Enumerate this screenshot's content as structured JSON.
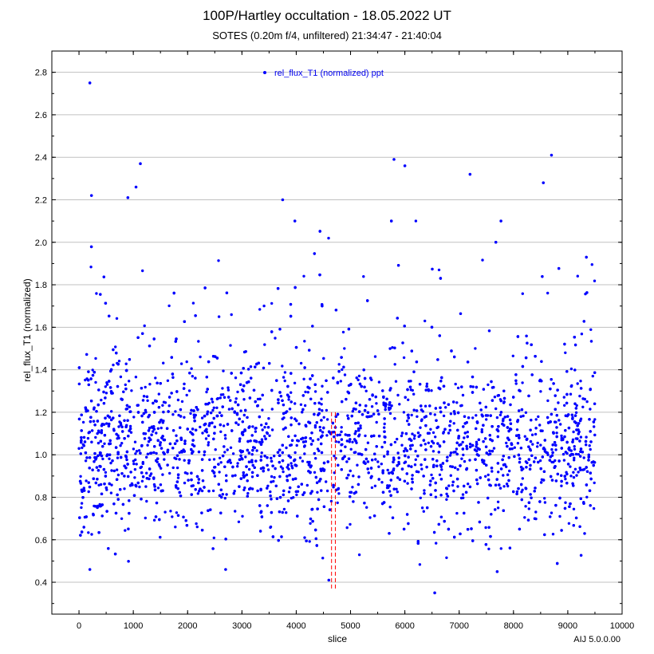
{
  "chart_data": {
    "type": "scatter",
    "title": "100P/Hartley occultation - 18.05.2022 UT",
    "subtitle": "SOTES (0.20m f/4, unfiltered) 21:34:47 - 21:40:04",
    "xlabel": "slice",
    "ylabel": "rel_flux_T1 (normalized)",
    "footer": "AIJ 5.0.0.00",
    "xlim": [
      -500,
      10000
    ],
    "ylim": [
      0.25,
      2.9
    ],
    "xticks": [
      0,
      1000,
      2000,
      3000,
      4000,
      5000,
      6000,
      7000,
      8000,
      9000,
      10000
    ],
    "yticks": [
      0.4,
      0.6,
      0.8,
      1.0,
      1.2,
      1.4,
      1.6,
      1.8,
      2.0,
      2.2,
      2.4,
      2.6,
      2.8
    ],
    "ytick_labels": [
      "0.4",
      "0.6",
      "0.8",
      "1.0",
      "1.2",
      "1.4",
      "1.6",
      "1.8",
      "2.0",
      "2.2",
      "2.4",
      "2.6",
      "2.8"
    ],
    "grid": "horizontal",
    "legend_position": "top-center",
    "series": [
      {
        "name": "rel_flux_T1 (normalized) ppt",
        "color": "#0000ff",
        "point_count": 9500,
        "x_range": [
          0,
          9500
        ],
        "typical_center": 1.05,
        "typical_spread": 0.2,
        "notable_points": [
          {
            "x": 200,
            "y": 2.75
          },
          {
            "x": 230,
            "y": 2.22
          },
          {
            "x": 1130,
            "y": 2.37
          },
          {
            "x": 1050,
            "y": 2.26
          },
          {
            "x": 900,
            "y": 2.21
          },
          {
            "x": 8700,
            "y": 2.41
          },
          {
            "x": 5800,
            "y": 2.39
          },
          {
            "x": 6000,
            "y": 2.36
          },
          {
            "x": 8550,
            "y": 2.28
          },
          {
            "x": 7200,
            "y": 2.32
          },
          {
            "x": 3750,
            "y": 2.2
          },
          {
            "x": 4600,
            "y": 0.41
          },
          {
            "x": 6550,
            "y": 0.35
          },
          {
            "x": 200,
            "y": 0.46
          },
          {
            "x": 2700,
            "y": 0.46
          },
          {
            "x": 7700,
            "y": 0.45
          }
        ]
      }
    ],
    "markers": [
      {
        "x": 4650,
        "y_range": [
          0.37,
          1.2
        ],
        "color": "#ff0000",
        "style": "dashed"
      },
      {
        "x": 4720,
        "y_range": [
          0.37,
          1.2
        ],
        "color": "#ff0000",
        "style": "dashed"
      }
    ]
  }
}
